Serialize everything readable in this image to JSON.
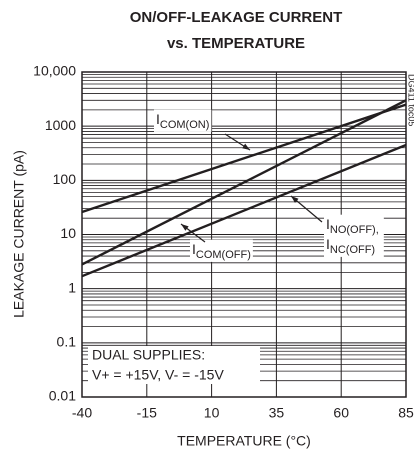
{
  "chart_data": {
    "type": "line",
    "title": [
      "ON/OFF-LEAKAGE CURRENT",
      "vs. TEMPERATURE"
    ],
    "xlabel": "TEMPERATURE (°C)",
    "ylabel": "LEAKAGE CURRENT (pA)",
    "x": [
      -40,
      85
    ],
    "series": [
      {
        "name": "ICOM(ON)",
        "color": "#231f20",
        "values": [
          26,
          2500
        ]
      },
      {
        "name": "ICOM(OFF)",
        "color": "#231f20",
        "values": [
          2.8,
          3000
        ]
      },
      {
        "name": "INO(OFF), INC(OFF)",
        "color": "#231f20",
        "values": [
          1.7,
          450
        ]
      }
    ],
    "xlim": [
      -40,
      85
    ],
    "xticks": [
      -40,
      -15,
      10,
      35,
      60,
      85
    ],
    "ylim": [
      0.01,
      10000
    ],
    "yticks": [
      0.01,
      0.1,
      1,
      10,
      100,
      1000,
      {
        "value": 10000,
        "label": "10,000"
      }
    ],
    "log_y": true,
    "grid": true,
    "annotations": [
      "DUAL SUPPLIES:",
      "V+ = +15V, V- = -15V",
      "DG411 toc05"
    ]
  }
}
